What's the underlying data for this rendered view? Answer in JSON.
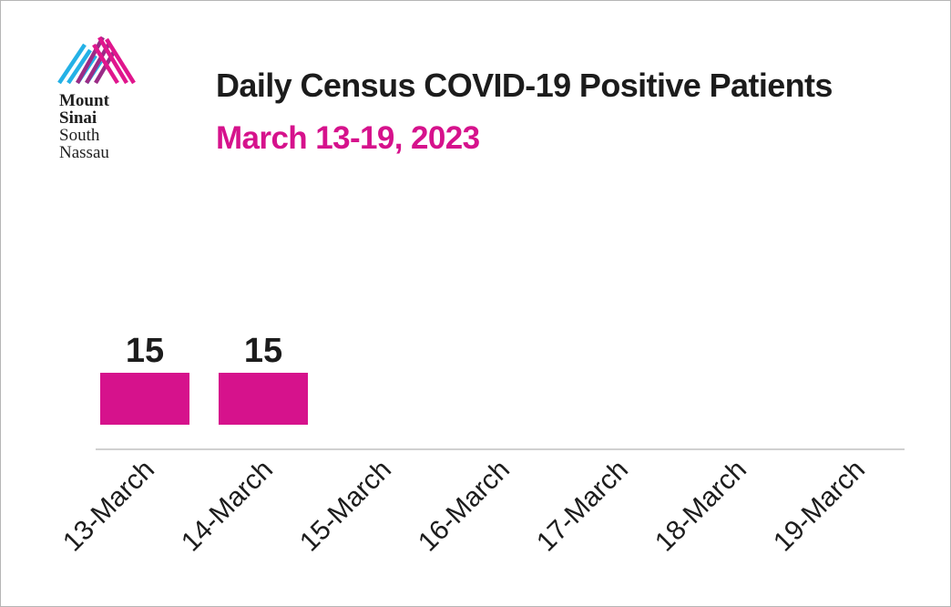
{
  "logo": {
    "line1": "Mount",
    "line2": "Sinai",
    "line3": "South",
    "line4": "Nassau",
    "colors": [
      "#24b1e6",
      "#9b2b86",
      "#e0168d"
    ]
  },
  "header": {
    "title": "Daily Census COVID-19 Positive Patients",
    "subtitle": "March 13-19, 2023"
  },
  "colors": {
    "bar": "#d6128c",
    "text": "#1c1c1c",
    "accent": "#d6128c",
    "axis": "#b5b5b5"
  },
  "chart_data": {
    "type": "bar",
    "title": "Daily Census COVID-19 Positive Patients",
    "subtitle": "March 13-19, 2023",
    "categories": [
      "13-March",
      "14-March",
      "15-March",
      "16-March",
      "17-March",
      "18-March",
      "19-March"
    ],
    "values": [
      15,
      15,
      null,
      null,
      null,
      null,
      null
    ],
    "data_labels": [
      "15",
      "15",
      "",
      "",
      "",
      "",
      ""
    ],
    "xlabel": "",
    "ylabel": "",
    "ylim": [
      0,
      280
    ],
    "grid": false,
    "legend": "none"
  }
}
